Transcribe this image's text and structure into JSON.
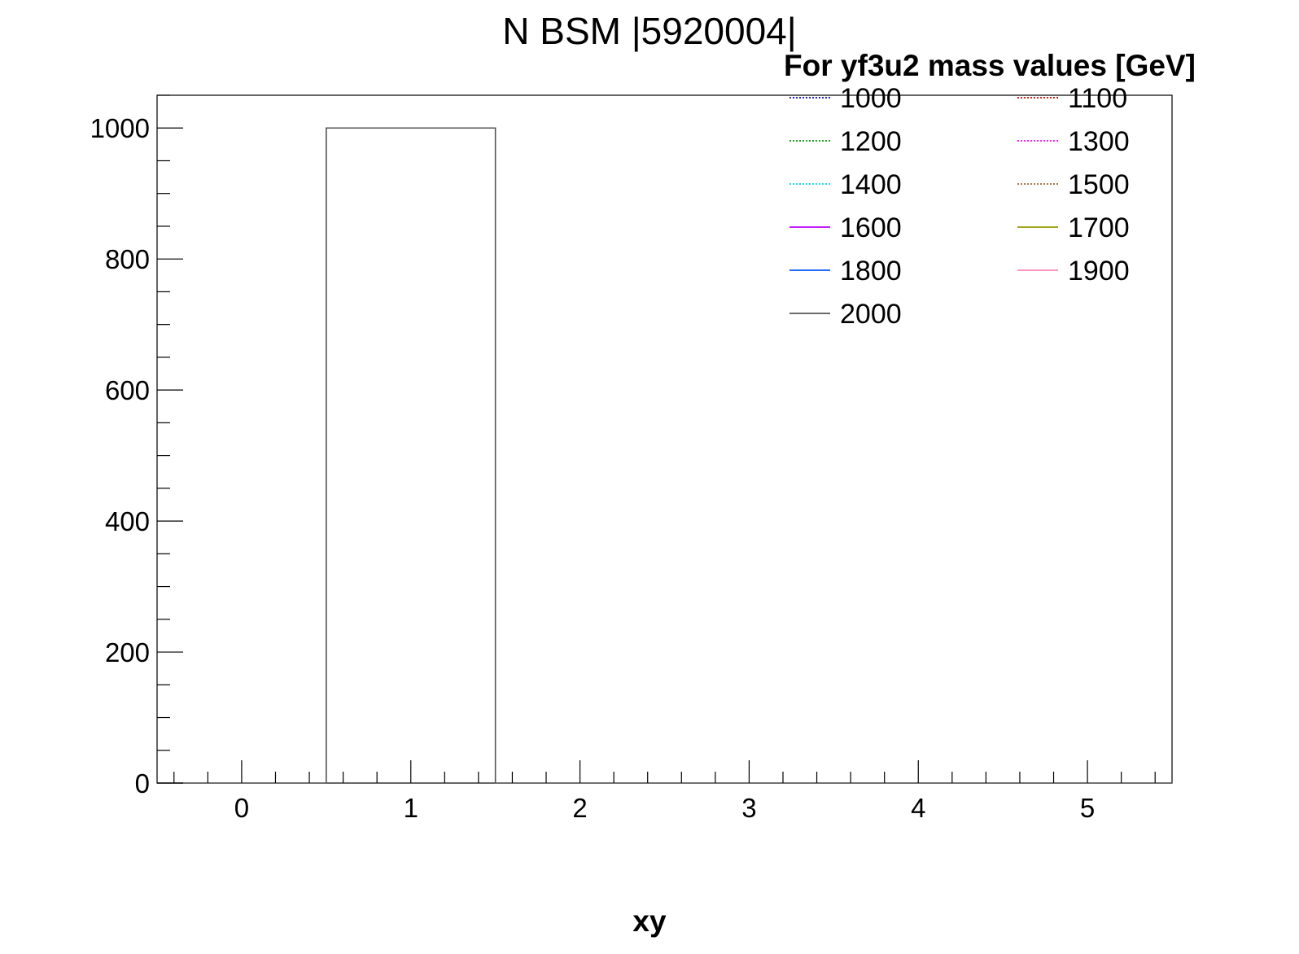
{
  "chart_data": {
    "type": "bar",
    "title": "N BSM |5920004|",
    "xlabel": "xy",
    "ylabel": "",
    "xlim": [
      -0.5,
      5.5
    ],
    "ylim": [
      0,
      1050
    ],
    "x_ticks": [
      "0",
      "1",
      "2",
      "3",
      "4",
      "5"
    ],
    "y_ticks": [
      "0",
      "200",
      "400",
      "600",
      "800",
      "1000"
    ],
    "bins": [
      {
        "low": -0.5,
        "high": 0.5,
        "value": 0
      },
      {
        "low": 0.5,
        "high": 1.5,
        "value": 1000
      },
      {
        "low": 1.5,
        "high": 2.5,
        "value": 0
      },
      {
        "low": 2.5,
        "high": 3.5,
        "value": 0
      },
      {
        "low": 3.5,
        "high": 4.5,
        "value": 0
      },
      {
        "low": 4.5,
        "high": 5.5,
        "value": 0
      }
    ],
    "histogram_color": "#555555",
    "grid": false,
    "legend": {
      "title": "For yf3u2 mass values [GeV]",
      "placement": "top-right",
      "columns": 2,
      "entries": [
        {
          "label": "1000",
          "color": "#0000cc",
          "style": "dotted"
        },
        {
          "label": "1100",
          "color": "#cc0000",
          "style": "dotted"
        },
        {
          "label": "1200",
          "color": "#009900",
          "style": "dotted"
        },
        {
          "label": "1300",
          "color": "#ff00ff",
          "style": "dotted"
        },
        {
          "label": "1400",
          "color": "#00dddd",
          "style": "dotted"
        },
        {
          "label": "1500",
          "color": "#996633",
          "style": "dotted"
        },
        {
          "label": "1600",
          "color": "#bb00ff",
          "style": "solid"
        },
        {
          "label": "1700",
          "color": "#999900",
          "style": "solid"
        },
        {
          "label": "1800",
          "color": "#0055ff",
          "style": "solid"
        },
        {
          "label": "1900",
          "color": "#ff88bb",
          "style": "solid"
        },
        {
          "label": "2000",
          "color": "#555555",
          "style": "solid"
        }
      ]
    }
  }
}
